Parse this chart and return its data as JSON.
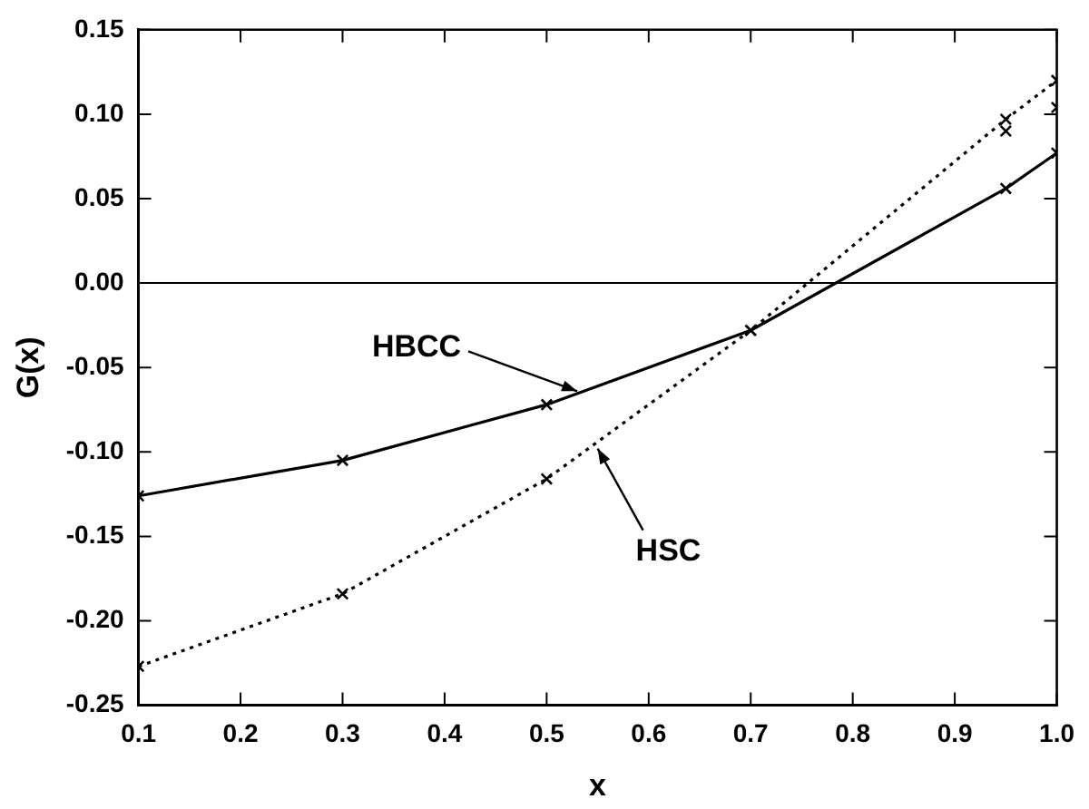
{
  "chart_data": {
    "type": "line",
    "xlabel": "x",
    "ylabel": "G(x)",
    "xlim": [
      0.1,
      1.0
    ],
    "xticks": [
      {
        "value": 0.1,
        "label": "0.1"
      },
      {
        "value": 0.2,
        "label": "0.2"
      },
      {
        "value": 0.3,
        "label": "0.3"
      },
      {
        "value": 0.4,
        "label": "0.4"
      },
      {
        "value": 0.5,
        "label": "0.5"
      },
      {
        "value": 0.6,
        "label": "0.6"
      },
      {
        "value": 0.7,
        "label": "0.7"
      },
      {
        "value": 0.8,
        "label": "0.8"
      },
      {
        "value": 0.9,
        "label": "0.9"
      },
      {
        "value": 1.0,
        "label": "1.0"
      }
    ],
    "ylim": [
      -0.25,
      0.15
    ],
    "yticks": [
      {
        "value": -0.25,
        "label": "-0.25"
      },
      {
        "value": -0.2,
        "label": "-0.20"
      },
      {
        "value": -0.15,
        "label": "-0.15"
      },
      {
        "value": -0.1,
        "label": "-0.10"
      },
      {
        "value": -0.05,
        "label": "-0.05"
      },
      {
        "value": 0,
        "label": "0.00"
      },
      {
        "value": 0.05,
        "label": "0.05"
      },
      {
        "value": 0.1,
        "label": "0.10"
      },
      {
        "value": 0.15,
        "label": "0.15"
      }
    ],
    "grid": false,
    "legend": false,
    "marker": "cross",
    "series": [
      {
        "color": "#000000",
        "line_style": "solid",
        "x": [
          0.1,
          0.3,
          0.5,
          0.7,
          0.95,
          1.0
        ],
        "values": [
          -0.126,
          -0.105,
          -0.072,
          -0.028,
          0.056,
          0.077
        ]
      },
      {
        "color": "#000000",
        "line_style": "dotted",
        "x": [
          0.1,
          0.3,
          0.5,
          0.7,
          0.95,
          1.0
        ],
        "values": [
          -0.227,
          -0.184,
          -0.116,
          -0.028,
          0.097,
          0.12
        ]
      },
      {
        "type": "scatter",
        "color": "#000000",
        "x": [
          0.95,
          1.0
        ],
        "values": [
          0.09,
          0.104
        ]
      }
    ],
    "ref_lines": [
      {
        "axis": "y",
        "value": 0,
        "color": "#000000",
        "line_style": "solid"
      }
    ],
    "annotations": [
      {
        "text": "HBCC",
        "x": 0.53,
        "y": -0.064
      },
      {
        "text": "HSC",
        "x": 0.55,
        "y": -0.098
      }
    ]
  }
}
